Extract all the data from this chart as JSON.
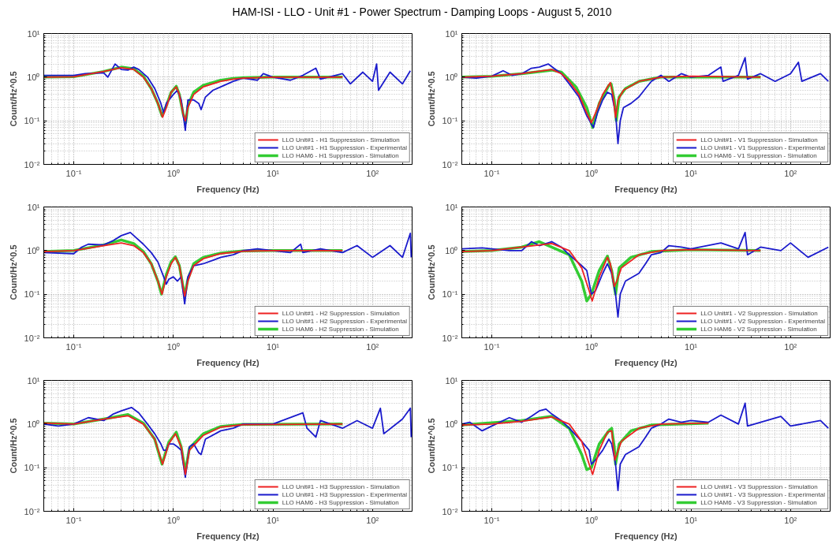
{
  "chart_data": [
    {
      "type": "line",
      "title": "HAM-ISI - LLO - Unit #1 - Power Spectrum - Damping Loops - August 5, 2010",
      "xlabel": "Frequency (Hz)",
      "ylabel": "Count/Hz^0.5",
      "log": "xy",
      "grid": true,
      "legend": "bottom right",
      "xlim": [
        0.05,
        250
      ],
      "ylim": [
        0.01,
        10
      ],
      "xticks": [
        {
          "value": 0.1,
          "label": "10⁻¹"
        },
        {
          "value": 1,
          "label": "10⁰"
        },
        {
          "value": 10,
          "label": "10¹"
        },
        {
          "value": 100,
          "label": "10²"
        }
      ],
      "yticks": [
        {
          "value": 0.01,
          "label": "10⁻²"
        },
        {
          "value": 0.1,
          "label": "10⁻¹"
        },
        {
          "value": 1,
          "label": "10⁰"
        },
        {
          "value": 10,
          "label": "10¹"
        }
      ],
      "series": [
        {
          "name": "LLO Unit#1 - H1 Suppression - Simulation",
          "color": "#ee2222",
          "x": [
            0.05,
            0.1,
            0.2,
            0.3,
            0.4,
            0.5,
            0.6,
            0.7,
            0.78,
            0.85,
            0.95,
            1.07,
            1.15,
            1.25,
            1.32,
            1.4,
            1.6,
            2,
            3,
            4,
            5,
            10,
            50
          ],
          "values": [
            1.0,
            1.02,
            1.35,
            1.65,
            1.5,
            1.0,
            0.55,
            0.25,
            0.12,
            0.2,
            0.45,
            0.6,
            0.4,
            0.15,
            0.1,
            0.2,
            0.4,
            0.6,
            0.8,
            0.9,
            0.95,
            1.0,
            1.0
          ]
        },
        {
          "name": "LLO Unit#1 - H1 Suppression - Experimental",
          "color": "#1a1acc",
          "x": [
            0.05,
            0.1,
            0.13,
            0.2,
            0.22,
            0.26,
            0.3,
            0.35,
            0.4,
            0.45,
            0.55,
            0.65,
            0.75,
            0.8,
            0.85,
            1.0,
            1.1,
            1.2,
            1.32,
            1.4,
            1.6,
            1.8,
            1.9,
            2.1,
            2.5,
            3,
            3.5,
            4,
            5,
            7,
            8,
            10,
            15,
            20,
            27,
            30,
            50,
            60,
            80,
            100,
            110,
            115,
            150,
            200,
            240
          ],
          "values": [
            1.1,
            1.1,
            1.2,
            1.25,
            1.0,
            2.0,
            1.5,
            1.45,
            1.7,
            1.5,
            1.0,
            0.55,
            0.25,
            0.15,
            0.25,
            0.4,
            0.5,
            0.3,
            0.06,
            0.3,
            0.3,
            0.25,
            0.18,
            0.35,
            0.5,
            0.6,
            0.7,
            0.8,
            0.95,
            0.85,
            1.2,
            1.0,
            0.85,
            1.1,
            1.6,
            0.9,
            1.2,
            0.7,
            1.3,
            0.8,
            2.0,
            0.5,
            1.3,
            0.7,
            1.4
          ]
        },
        {
          "name": "LLO HAM6 - H1 Suppression - Simulation",
          "color": "#33cc33",
          "x": [
            0.05,
            0.1,
            0.2,
            0.3,
            0.4,
            0.5,
            0.6,
            0.7,
            0.77,
            0.85,
            0.95,
            1.07,
            1.15,
            1.25,
            1.33,
            1.4,
            1.6,
            2,
            3,
            4,
            5,
            10,
            50
          ],
          "values": [
            1.0,
            1.02,
            1.35,
            1.7,
            1.55,
            1.05,
            0.55,
            0.25,
            0.13,
            0.22,
            0.45,
            0.62,
            0.4,
            0.15,
            0.09,
            0.22,
            0.45,
            0.65,
            0.85,
            0.93,
            0.97,
            1.0,
            1.0
          ]
        }
      ]
    },
    {
      "type": "line",
      "xlabel": "Frequency (Hz)",
      "ylabel": "Count/Hz^0.5",
      "log": "xy",
      "grid": true,
      "legend": "bottom right",
      "xlim": [
        0.05,
        250
      ],
      "ylim": [
        0.01,
        10
      ],
      "xticks": [
        {
          "value": 0.1,
          "label": "10⁻¹"
        },
        {
          "value": 1,
          "label": "10⁰"
        },
        {
          "value": 10,
          "label": "10¹"
        },
        {
          "value": 100,
          "label": "10²"
        }
      ],
      "yticks": [
        {
          "value": 0.01,
          "label": "10⁻²"
        },
        {
          "value": 0.1,
          "label": "10⁻¹"
        },
        {
          "value": 1,
          "label": "10⁰"
        },
        {
          "value": 10,
          "label": "10¹"
        }
      ],
      "series": [
        {
          "name": "LLO Unit#1 - V1 Suppression - Simulation",
          "color": "#ee2222",
          "x": [
            0.05,
            0.1,
            0.2,
            0.4,
            0.5,
            0.6,
            0.75,
            0.9,
            1.0,
            1.1,
            1.3,
            1.55,
            1.65,
            1.75,
            1.85,
            2.1,
            3,
            5,
            10,
            50
          ],
          "values": [
            1.0,
            1.05,
            1.2,
            1.5,
            1.2,
            0.8,
            0.4,
            0.15,
            0.09,
            0.15,
            0.4,
            0.75,
            0.4,
            0.12,
            0.3,
            0.5,
            0.8,
            1.0,
            1.05,
            1.0
          ]
        },
        {
          "name": "LLO Unit#1 - V1 Suppression - Experimental",
          "color": "#1a1acc",
          "x": [
            0.05,
            0.07,
            0.1,
            0.13,
            0.16,
            0.2,
            0.25,
            0.3,
            0.37,
            0.42,
            0.5,
            0.6,
            0.75,
            0.9,
            1.05,
            1.15,
            1.3,
            1.45,
            1.6,
            1.75,
            1.85,
            1.95,
            2.1,
            2.5,
            3,
            3.5,
            4,
            5,
            6,
            8,
            10,
            15,
            20,
            21,
            30,
            35,
            37,
            50,
            70,
            100,
            120,
            130,
            200,
            240
          ],
          "values": [
            1.0,
            0.95,
            1.05,
            1.4,
            1.1,
            1.2,
            1.6,
            1.7,
            2.0,
            1.6,
            1.2,
            0.7,
            0.35,
            0.13,
            0.07,
            0.15,
            0.3,
            0.45,
            0.4,
            0.15,
            0.03,
            0.1,
            0.2,
            0.25,
            0.35,
            0.55,
            0.8,
            1.1,
            0.8,
            1.2,
            1.0,
            1.1,
            1.7,
            0.8,
            1.1,
            2.8,
            0.9,
            1.2,
            0.8,
            1.2,
            2.2,
            0.8,
            1.2,
            0.8
          ]
        },
        {
          "name": "LLO HAM6 - V1 Suppression - Simulation",
          "color": "#33cc33",
          "x": [
            0.05,
            0.1,
            0.2,
            0.4,
            0.5,
            0.7,
            0.9,
            1.03,
            1.2,
            1.5,
            1.58,
            1.7,
            1.78,
            1.9,
            2.2,
            3,
            5,
            50
          ],
          "values": [
            1.0,
            1.05,
            1.2,
            1.45,
            1.3,
            0.6,
            0.2,
            0.07,
            0.25,
            0.65,
            0.7,
            0.3,
            0.1,
            0.35,
            0.55,
            0.8,
            1.0,
            1.0
          ]
        }
      ]
    },
    {
      "type": "line",
      "xlabel": "Frequency (Hz)",
      "ylabel": "Count/Hz^0.5",
      "log": "xy",
      "grid": true,
      "legend": "bottom right",
      "xlim": [
        0.05,
        250
      ],
      "ylim": [
        0.01,
        10
      ],
      "xticks": [
        {
          "value": 0.1,
          "label": "10⁻¹"
        },
        {
          "value": 1,
          "label": "10⁰"
        },
        {
          "value": 10,
          "label": "10¹"
        },
        {
          "value": 100,
          "label": "10²"
        }
      ],
      "yticks": [
        {
          "value": 0.01,
          "label": "10⁻²"
        },
        {
          "value": 0.1,
          "label": "10⁻¹"
        },
        {
          "value": 1,
          "label": "10⁰"
        },
        {
          "value": 10,
          "label": "10¹"
        }
      ],
      "series": [
        {
          "name": "LLO Unit#1 - H2 Suppression - Simulation",
          "color": "#ee2222",
          "x": [
            0.05,
            0.1,
            0.2,
            0.3,
            0.4,
            0.5,
            0.6,
            0.7,
            0.77,
            0.85,
            0.95,
            1.05,
            1.15,
            1.25,
            1.3,
            1.4,
            1.6,
            2,
            3,
            5,
            10,
            50
          ],
          "values": [
            0.95,
            1.0,
            1.3,
            1.5,
            1.3,
            0.9,
            0.5,
            0.2,
            0.1,
            0.25,
            0.5,
            0.7,
            0.45,
            0.15,
            0.09,
            0.2,
            0.45,
            0.65,
            0.85,
            0.97,
            1.0,
            1.0
          ]
        },
        {
          "name": "LLO Unit#1 - H2 Suppression - Experimental",
          "color": "#1a1acc",
          "x": [
            0.05,
            0.1,
            0.12,
            0.14,
            0.2,
            0.25,
            0.3,
            0.37,
            0.42,
            0.5,
            0.6,
            0.7,
            0.8,
            0.85,
            0.9,
            1.0,
            1.1,
            1.2,
            1.3,
            1.4,
            1.6,
            2,
            2.5,
            3,
            4,
            5,
            7,
            10,
            15,
            19,
            20,
            30,
            50,
            70,
            100,
            150,
            200,
            240,
            245
          ],
          "values": [
            0.9,
            0.85,
            1.2,
            1.4,
            1.35,
            1.7,
            2.2,
            2.6,
            2.0,
            1.4,
            0.9,
            0.55,
            0.25,
            0.17,
            0.22,
            0.25,
            0.2,
            0.25,
            0.06,
            0.25,
            0.45,
            0.5,
            0.6,
            0.7,
            0.8,
            1.0,
            1.1,
            1.0,
            0.9,
            1.4,
            0.9,
            1.1,
            0.9,
            1.3,
            0.7,
            1.3,
            0.7,
            2.5,
            0.7
          ]
        },
        {
          "name": "LLO HAM6 - H2 Suppression - Simulation",
          "color": "#33cc33",
          "x": [
            0.05,
            0.1,
            0.2,
            0.3,
            0.4,
            0.5,
            0.6,
            0.7,
            0.76,
            0.85,
            0.95,
            1.05,
            1.15,
            1.25,
            1.3,
            1.4,
            1.6,
            2,
            3,
            5,
            10,
            50
          ],
          "values": [
            0.95,
            1.0,
            1.35,
            1.75,
            1.45,
            0.95,
            0.5,
            0.2,
            0.1,
            0.28,
            0.55,
            0.72,
            0.45,
            0.15,
            0.09,
            0.22,
            0.5,
            0.7,
            0.88,
            0.98,
            1.0,
            1.0
          ]
        }
      ]
    },
    {
      "type": "line",
      "xlabel": "Frequency (Hz)",
      "ylabel": "Count/Hz^0.5",
      "log": "xy",
      "grid": true,
      "legend": "bottom right",
      "xlim": [
        0.05,
        250
      ],
      "ylim": [
        0.01,
        10
      ],
      "xticks": [
        {
          "value": 0.1,
          "label": "10⁻¹"
        },
        {
          "value": 1,
          "label": "10⁰"
        },
        {
          "value": 10,
          "label": "10¹"
        },
        {
          "value": 100,
          "label": "10²"
        }
      ],
      "yticks": [
        {
          "value": 0.01,
          "label": "10⁻²"
        },
        {
          "value": 0.1,
          "label": "10⁻¹"
        },
        {
          "value": 1,
          "label": "10⁰"
        },
        {
          "value": 10,
          "label": "10¹"
        }
      ],
      "series": [
        {
          "name": "LLO Unit#1 - V2 Suppression - Simulation",
          "color": "#ee2222",
          "x": [
            0.05,
            0.1,
            0.2,
            0.4,
            0.6,
            0.8,
            0.95,
            1.02,
            1.2,
            1.45,
            1.55,
            1.7,
            1.8,
            2,
            3,
            5,
            10,
            50
          ],
          "values": [
            0.95,
            1.0,
            1.2,
            1.45,
            1.0,
            0.4,
            0.12,
            0.07,
            0.25,
            0.7,
            0.5,
            0.15,
            0.2,
            0.4,
            0.8,
            1.0,
            1.05,
            1.0
          ]
        },
        {
          "name": "LLO Unit#1 - V2 Suppression - Experimental",
          "color": "#1a1acc",
          "x": [
            0.05,
            0.08,
            0.1,
            0.15,
            0.2,
            0.25,
            0.3,
            0.4,
            0.5,
            0.6,
            0.8,
            0.9,
            1.0,
            1.1,
            1.3,
            1.45,
            1.6,
            1.75,
            1.85,
            1.95,
            2.2,
            3,
            3.5,
            4,
            5,
            6,
            8,
            10,
            20,
            30,
            35,
            37,
            50,
            80,
            100,
            150,
            240
          ],
          "values": [
            1.1,
            1.15,
            1.1,
            1.0,
            1.0,
            1.6,
            1.3,
            1.6,
            1.2,
            0.8,
            0.45,
            0.35,
            0.1,
            0.12,
            0.3,
            0.5,
            0.3,
            0.1,
            0.03,
            0.1,
            0.2,
            0.3,
            0.5,
            0.8,
            0.9,
            1.3,
            1.2,
            1.1,
            1.5,
            1.1,
            2.6,
            0.8,
            1.2,
            1.0,
            1.5,
            0.7,
            1.2
          ]
        },
        {
          "name": "LLO HAM6 - V2 Suppression - Simulation",
          "color": "#33cc33",
          "x": [
            0.05,
            0.1,
            0.2,
            0.3,
            0.6,
            0.8,
            0.9,
            1.0,
            1.2,
            1.45,
            1.6,
            1.75,
            1.9,
            2.5,
            4,
            10,
            50
          ],
          "values": [
            0.95,
            1.0,
            1.2,
            1.6,
            0.8,
            0.2,
            0.07,
            0.1,
            0.35,
            0.75,
            0.35,
            0.1,
            0.4,
            0.7,
            0.95,
            1.05,
            1.0
          ]
        }
      ]
    },
    {
      "type": "line",
      "xlabel": "Frequency (Hz)",
      "ylabel": "Count/Hz^0.5",
      "log": "xy",
      "grid": true,
      "legend": "bottom right",
      "xlim": [
        0.05,
        250
      ],
      "ylim": [
        0.01,
        10
      ],
      "xticks": [
        {
          "value": 0.1,
          "label": "10⁻¹"
        },
        {
          "value": 1,
          "label": "10⁰"
        },
        {
          "value": 10,
          "label": "10¹"
        },
        {
          "value": 100,
          "label": "10²"
        }
      ],
      "yticks": [
        {
          "value": 0.01,
          "label": "10⁻²"
        },
        {
          "value": 0.1,
          "label": "10⁻¹"
        },
        {
          "value": 1,
          "label": "10⁰"
        },
        {
          "value": 10,
          "label": "10¹"
        }
      ],
      "series": [
        {
          "name": "LLO Unit#1 - H3 Suppression - Simulation",
          "color": "#ee2222",
          "x": [
            0.05,
            0.1,
            0.2,
            0.35,
            0.5,
            0.65,
            0.78,
            0.9,
            1.05,
            1.2,
            1.32,
            1.45,
            2,
            3,
            5,
            50
          ],
          "values": [
            1.05,
            1.0,
            1.3,
            1.55,
            1.0,
            0.45,
            0.12,
            0.35,
            0.6,
            0.3,
            0.07,
            0.25,
            0.55,
            0.85,
            0.97,
            1.0
          ]
        },
        {
          "name": "LLO Unit#1 - H3 Suppression - Experimental",
          "color": "#1a1acc",
          "x": [
            0.05,
            0.07,
            0.1,
            0.14,
            0.2,
            0.25,
            0.3,
            0.38,
            0.45,
            0.55,
            0.65,
            0.75,
            0.8,
            0.85,
            0.9,
            1.0,
            1.1,
            1.2,
            1.32,
            1.45,
            1.6,
            1.8,
            1.9,
            2.1,
            3,
            4,
            5,
            10,
            20,
            22,
            27,
            30,
            50,
            70,
            100,
            120,
            130,
            200,
            240,
            245
          ],
          "values": [
            1.0,
            0.9,
            1.0,
            1.4,
            1.2,
            1.7,
            2.0,
            2.4,
            1.8,
            1.0,
            0.6,
            0.35,
            0.25,
            0.25,
            0.35,
            0.35,
            0.3,
            0.25,
            0.06,
            0.3,
            0.35,
            0.22,
            0.2,
            0.45,
            0.7,
            0.8,
            1.0,
            1.0,
            1.8,
            0.8,
            0.5,
            1.2,
            0.8,
            1.2,
            0.8,
            2.3,
            0.6,
            1.3,
            2.3,
            0.5
          ]
        },
        {
          "name": "LLO HAM6 - H3 Suppression - Simulation",
          "color": "#33cc33",
          "x": [
            0.05,
            0.1,
            0.2,
            0.35,
            0.5,
            0.65,
            0.77,
            0.9,
            1.07,
            1.2,
            1.32,
            1.45,
            2,
            3,
            5,
            50
          ],
          "values": [
            1.05,
            1.0,
            1.3,
            1.65,
            1.05,
            0.45,
            0.12,
            0.38,
            0.65,
            0.3,
            0.08,
            0.28,
            0.6,
            0.88,
            0.98,
            1.0
          ]
        }
      ]
    },
    {
      "type": "line",
      "xlabel": "Frequency (Hz)",
      "ylabel": "Count/Hz^0.5",
      "log": "xy",
      "grid": true,
      "legend": "bottom right",
      "xlim": [
        0.05,
        250
      ],
      "ylim": [
        0.01,
        10
      ],
      "xticks": [
        {
          "value": 0.1,
          "label": "10⁻¹"
        },
        {
          "value": 1,
          "label": "10⁰"
        },
        {
          "value": 10,
          "label": "10¹"
        },
        {
          "value": 100,
          "label": "10²"
        }
      ],
      "yticks": [
        {
          "value": 0.01,
          "label": "10⁻²"
        },
        {
          "value": 0.1,
          "label": "10⁻¹"
        },
        {
          "value": 1,
          "label": "10⁰"
        },
        {
          "value": 10,
          "label": "10¹"
        }
      ],
      "series": [
        {
          "name": "LLO Unit#1 - V3 Suppression - Simulation",
          "color": "#ee2222",
          "x": [
            0.05,
            0.1,
            0.2,
            0.4,
            0.6,
            0.8,
            0.95,
            1.03,
            1.2,
            1.45,
            1.6,
            1.72,
            1.8,
            2,
            3,
            5,
            15
          ],
          "values": [
            0.95,
            1.0,
            1.15,
            1.45,
            1.0,
            0.4,
            0.12,
            0.07,
            0.25,
            0.65,
            0.7,
            0.15,
            0.2,
            0.4,
            0.8,
            1.0,
            1.05
          ]
        },
        {
          "name": "LLO Unit#1 - V3 Suppression - Experimental",
          "color": "#1a1acc",
          "x": [
            0.05,
            0.06,
            0.08,
            0.1,
            0.15,
            0.2,
            0.25,
            0.3,
            0.35,
            0.4,
            0.5,
            0.6,
            0.8,
            0.95,
            1.0,
            1.1,
            1.3,
            1.5,
            1.6,
            1.75,
            1.85,
            1.95,
            2.2,
            3,
            3.5,
            4,
            5,
            6,
            8,
            10,
            15,
            20,
            30,
            35,
            37,
            50,
            80,
            100,
            200,
            240
          ],
          "values": [
            1.0,
            1.1,
            0.7,
            0.9,
            1.4,
            1.1,
            1.5,
            2.0,
            2.2,
            1.7,
            1.2,
            0.8,
            0.4,
            0.25,
            0.12,
            0.15,
            0.25,
            0.45,
            0.35,
            0.12,
            0.03,
            0.12,
            0.2,
            0.3,
            0.5,
            0.8,
            1.0,
            1.3,
            1.1,
            1.2,
            1.1,
            1.6,
            1.0,
            3.0,
            0.9,
            1.1,
            1.5,
            0.9,
            1.2,
            0.8
          ]
        },
        {
          "name": "LLO HAM6 - V3 Suppression - Simulation",
          "color": "#33cc33",
          "x": [
            0.05,
            0.2,
            0.4,
            0.6,
            0.8,
            0.9,
            1.0,
            1.2,
            1.5,
            1.6,
            1.7,
            1.75,
            1.9,
            2.5,
            4,
            15
          ],
          "values": [
            0.95,
            1.2,
            1.5,
            0.8,
            0.2,
            0.09,
            0.1,
            0.35,
            0.7,
            0.8,
            0.3,
            0.12,
            0.35,
            0.7,
            0.95,
            1.05
          ]
        }
      ]
    }
  ]
}
